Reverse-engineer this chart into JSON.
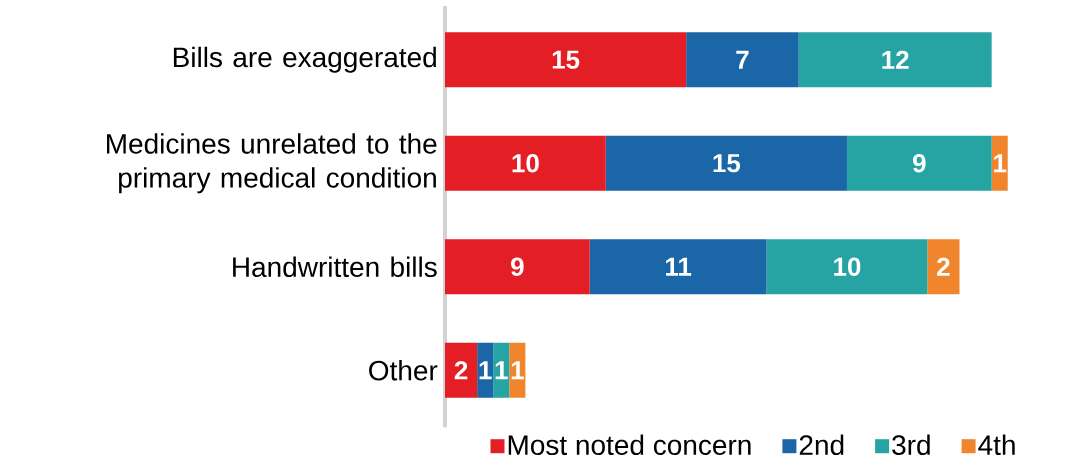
{
  "chart_data": {
    "type": "bar",
    "orientation": "horizontal",
    "stacked": true,
    "data_labels": true,
    "legend": "bottom",
    "categories": [
      "Bills are exaggerated",
      "Medicines unrelated to the primary medical condition",
      "Handwritten bills",
      "Other"
    ],
    "series": [
      {
        "name": "Most noted concern",
        "color": "#e31e24",
        "values": [
          15,
          10,
          9,
          2
        ]
      },
      {
        "name": "2nd",
        "color": "#1a66a6",
        "values": [
          7,
          15,
          11,
          1
        ]
      },
      {
        "name": "3rd",
        "color": "#26a3a3",
        "values": [
          12,
          9,
          10,
          1
        ]
      },
      {
        "name": "4th",
        "color": "#f0852d",
        "values": [
          null,
          1,
          2,
          1
        ]
      }
    ]
  }
}
